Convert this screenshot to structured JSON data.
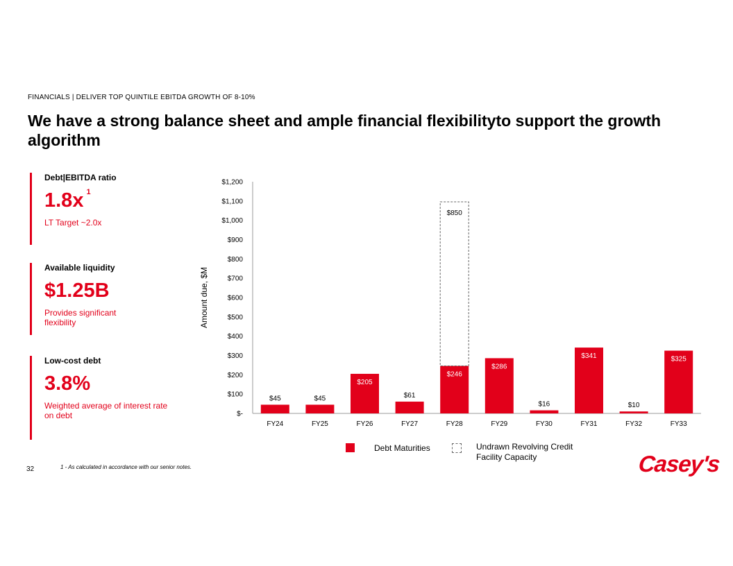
{
  "header": {
    "eyebrow": "FINANCIALS | DELIVER TOP QUINTILE EBITDA GROWTH OF 8-10%",
    "title": "We have a strong balance sheet and ample financial flexibilityto support the growth algorithm"
  },
  "kpis": [
    {
      "label": "Debt|EBITDA ratio",
      "value": "1.8x",
      "superscript": "1",
      "sub": "LT Target ~2.0x"
    },
    {
      "label": "Available liquidity",
      "value": "$1.25B",
      "sub": "Provides significant flexibility"
    },
    {
      "label": "Low-cost debt",
      "value": "3.8%",
      "sub": "Weighted average of interest rate on debt"
    }
  ],
  "footer": {
    "page_number": "32",
    "footnote": "1 - As calculated in accordance with our senior notes.",
    "logo_text": "Casey's"
  },
  "colors": {
    "accent": "#e2001a"
  },
  "chart_data": {
    "type": "bar",
    "categories": [
      "FY24",
      "FY25",
      "FY26",
      "FY27",
      "FY28",
      "FY29",
      "FY30",
      "FY31",
      "FY32",
      "FY33"
    ],
    "series": [
      {
        "name": "Debt Maturities",
        "values": [
          45,
          45,
          205,
          61,
          246,
          286,
          16,
          341,
          10,
          325
        ],
        "labels": [
          "$45",
          "$45",
          "$205",
          "$61",
          "$246",
          "$286",
          "$16",
          "$341",
          "$10",
          "$325"
        ]
      },
      {
        "name": "Undrawn Revolving Credit Facility Capacity",
        "values": [
          0,
          0,
          0,
          0,
          850,
          0,
          0,
          0,
          0,
          0
        ],
        "labels": [
          "",
          "",
          "",
          "",
          "$850",
          "",
          "",
          "",
          "",
          ""
        ]
      }
    ],
    "stacked": true,
    "ylabel": "Amount due, $M",
    "ylim": [
      0,
      1200
    ],
    "yticks": [
      0,
      100,
      200,
      300,
      400,
      500,
      600,
      700,
      800,
      900,
      1000,
      1100,
      1200
    ],
    "ytick_labels": [
      "$-",
      "$100",
      "$200",
      "$300",
      "$400",
      "$500",
      "$600",
      "$700",
      "$800",
      "$900",
      "$1,000",
      "$1,100",
      "$1,200"
    ],
    "legend_position": "bottom",
    "grid": false
  }
}
